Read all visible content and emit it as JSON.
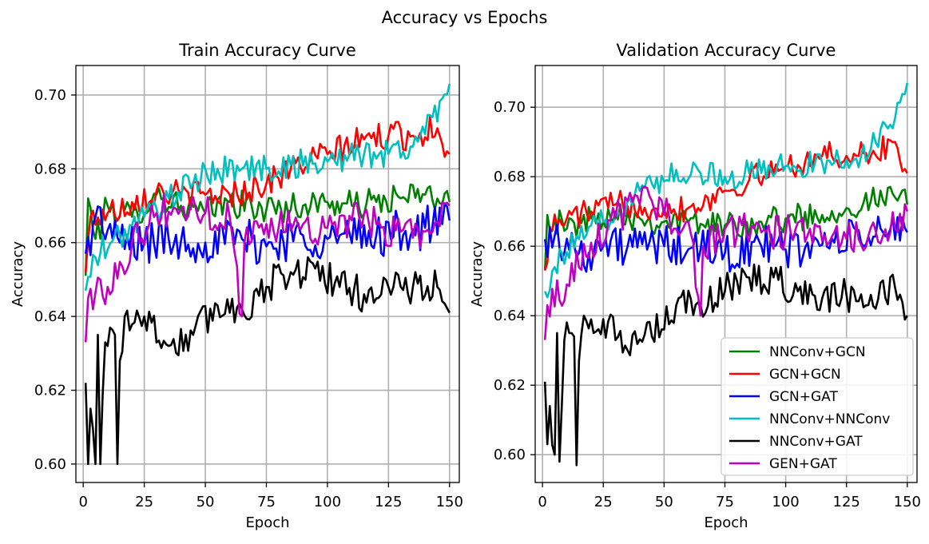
{
  "figure": {
    "title": "Accuracy vs Epochs"
  },
  "legend": {
    "location": "lower-right of second panel",
    "entries": [
      {
        "label": "NNConv+GCN",
        "color": "#008000"
      },
      {
        "label": "GCN+GCN",
        "color": "#ff0000"
      },
      {
        "label": "GCN+GAT",
        "color": "#0000ff"
      },
      {
        "label": "NNConv+NNConv",
        "color": "#00bfbf"
      },
      {
        "label": "NNConv+GAT",
        "color": "#000000"
      },
      {
        "label": "GEN+GAT",
        "color": "#bf00bf"
      }
    ]
  },
  "chart_data": [
    {
      "type": "line",
      "title": "Train Accuracy Curve",
      "xlabel": "Epoch",
      "ylabel": "Accuracy",
      "xlim": [
        -3,
        154
      ],
      "ylim": [
        0.595,
        0.708
      ],
      "xticks": [
        0,
        25,
        50,
        75,
        100,
        125,
        150
      ],
      "yticks": [
        0.6,
        0.62,
        0.64,
        0.66,
        0.68,
        0.7
      ],
      "ytick_labels": [
        "0.60",
        "0.62",
        "0.64",
        "0.66",
        "0.68",
        "0.70"
      ],
      "grid": true,
      "x": [
        1,
        150
      ],
      "series": [
        {
          "name": "NNConv+GCN",
          "color": "#008000",
          "keypoints": [
            [
              1,
              0.651
            ],
            [
              2,
              0.672
            ],
            [
              5,
              0.661
            ],
            [
              10,
              0.67
            ],
            [
              20,
              0.667
            ],
            [
              30,
              0.673
            ],
            [
              40,
              0.67
            ],
            [
              50,
              0.668
            ],
            [
              60,
              0.671
            ],
            [
              75,
              0.669
            ],
            [
              90,
              0.67
            ],
            [
              100,
              0.671
            ],
            [
              110,
              0.67
            ],
            [
              120,
              0.671
            ],
            [
              130,
              0.672
            ],
            [
              140,
              0.673
            ],
            [
              150,
              0.671
            ]
          ],
          "noise": 0.004
        },
        {
          "name": "GCN+GCN",
          "color": "#ff0000",
          "keypoints": [
            [
              1,
              0.652
            ],
            [
              3,
              0.667
            ],
            [
              10,
              0.668
            ],
            [
              20,
              0.671
            ],
            [
              30,
              0.674
            ],
            [
              40,
              0.673
            ],
            [
              50,
              0.673
            ],
            [
              60,
              0.673
            ],
            [
              75,
              0.676
            ],
            [
              85,
              0.68
            ],
            [
              100,
              0.684
            ],
            [
              115,
              0.688
            ],
            [
              125,
              0.689
            ],
            [
              135,
              0.689
            ],
            [
              145,
              0.691
            ],
            [
              150,
              0.684
            ]
          ],
          "noise": 0.004
        },
        {
          "name": "GCN+GAT",
          "color": "#0000ff",
          "keypoints": [
            [
              1,
              0.657
            ],
            [
              5,
              0.667
            ],
            [
              15,
              0.66
            ],
            [
              25,
              0.66
            ],
            [
              35,
              0.661
            ],
            [
              50,
              0.66
            ],
            [
              65,
              0.661
            ],
            [
              75,
              0.659
            ],
            [
              90,
              0.662
            ],
            [
              100,
              0.661
            ],
            [
              120,
              0.662
            ],
            [
              140,
              0.664
            ],
            [
              150,
              0.666
            ]
          ],
          "noise": 0.006
        },
        {
          "name": "NNConv+NNConv",
          "color": "#00bfbf",
          "keypoints": [
            [
              1,
              0.647
            ],
            [
              5,
              0.656
            ],
            [
              15,
              0.662
            ],
            [
              25,
              0.667
            ],
            [
              35,
              0.672
            ],
            [
              45,
              0.676
            ],
            [
              55,
              0.68
            ],
            [
              65,
              0.68
            ],
            [
              75,
              0.68
            ],
            [
              85,
              0.681
            ],
            [
              100,
              0.682
            ],
            [
              115,
              0.684
            ],
            [
              125,
              0.684
            ],
            [
              135,
              0.686
            ],
            [
              143,
              0.694
            ],
            [
              150,
              0.703
            ]
          ],
          "noise": 0.004
        },
        {
          "name": "NNConv+GAT",
          "color": "#000000",
          "keypoints": [
            [
              1,
              0.622
            ],
            [
              2,
              0.6
            ],
            [
              3,
              0.615
            ],
            [
              5,
              0.6
            ],
            [
              6,
              0.635
            ],
            [
              7,
              0.6
            ],
            [
              9,
              0.633
            ],
            [
              11,
              0.637
            ],
            [
              13,
              0.635
            ],
            [
              14,
              0.6
            ],
            [
              15,
              0.628
            ],
            [
              17,
              0.64
            ],
            [
              25,
              0.64
            ],
            [
              35,
              0.632
            ],
            [
              45,
              0.635
            ],
            [
              55,
              0.643
            ],
            [
              65,
              0.642
            ],
            [
              75,
              0.648
            ],
            [
              85,
              0.652
            ],
            [
              95,
              0.653
            ],
            [
              105,
              0.648
            ],
            [
              115,
              0.646
            ],
            [
              125,
              0.648
            ],
            [
              135,
              0.648
            ],
            [
              145,
              0.648
            ],
            [
              150,
              0.641
            ]
          ],
          "noise": 0.005
        },
        {
          "name": "GEN+GAT",
          "color": "#bf00bf",
          "keypoints": [
            [
              1,
              0.633
            ],
            [
              2,
              0.645
            ],
            [
              10,
              0.648
            ],
            [
              20,
              0.66
            ],
            [
              30,
              0.668
            ],
            [
              40,
              0.669
            ],
            [
              50,
              0.668
            ],
            [
              60,
              0.667
            ],
            [
              65,
              0.64
            ],
            [
              66,
              0.66
            ],
            [
              75,
              0.665
            ],
            [
              90,
              0.665
            ],
            [
              100,
              0.664
            ],
            [
              110,
              0.666
            ],
            [
              120,
              0.665
            ],
            [
              130,
              0.663
            ],
            [
              140,
              0.663
            ],
            [
              150,
              0.67
            ]
          ],
          "noise": 0.005
        }
      ]
    },
    {
      "type": "line",
      "title": "Validation Accuracy Curve",
      "xlabel": "Epoch",
      "ylabel": "Accuracy",
      "xlim": [
        -3,
        154
      ],
      "ylim": [
        0.592,
        0.712
      ],
      "xticks": [
        0,
        25,
        50,
        75,
        100,
        125,
        150
      ],
      "yticks": [
        0.6,
        0.62,
        0.64,
        0.66,
        0.68,
        0.7
      ],
      "ytick_labels": [
        "0.60",
        "0.62",
        "0.64",
        "0.66",
        "0.68",
        "0.70"
      ],
      "grid": true,
      "x": [
        1,
        150
      ],
      "series": [
        {
          "name": "NNConv+GCN",
          "color": "#008000",
          "keypoints": [
            [
              1,
              0.653
            ],
            [
              2,
              0.669
            ],
            [
              10,
              0.665
            ],
            [
              20,
              0.668
            ],
            [
              30,
              0.67
            ],
            [
              40,
              0.668
            ],
            [
              50,
              0.667
            ],
            [
              60,
              0.667
            ],
            [
              75,
              0.666
            ],
            [
              90,
              0.667
            ],
            [
              100,
              0.668
            ],
            [
              115,
              0.669
            ],
            [
              125,
              0.671
            ],
            [
              135,
              0.673
            ],
            [
              145,
              0.674
            ],
            [
              150,
              0.672
            ]
          ],
          "noise": 0.004
        },
        {
          "name": "GCN+GCN",
          "color": "#ff0000",
          "keypoints": [
            [
              1,
              0.653
            ],
            [
              3,
              0.665
            ],
            [
              10,
              0.668
            ],
            [
              20,
              0.67
            ],
            [
              30,
              0.672
            ],
            [
              40,
              0.672
            ],
            [
              50,
              0.671
            ],
            [
              60,
              0.671
            ],
            [
              75,
              0.676
            ],
            [
              85,
              0.679
            ],
            [
              100,
              0.683
            ],
            [
              115,
              0.686
            ],
            [
              125,
              0.686
            ],
            [
              135,
              0.686
            ],
            [
              145,
              0.69
            ],
            [
              150,
              0.681
            ]
          ],
          "noise": 0.004
        },
        {
          "name": "GCN+GAT",
          "color": "#0000ff",
          "keypoints": [
            [
              1,
              0.662
            ],
            [
              5,
              0.663
            ],
            [
              15,
              0.658
            ],
            [
              25,
              0.66
            ],
            [
              35,
              0.66
            ],
            [
              50,
              0.66
            ],
            [
              65,
              0.659
            ],
            [
              75,
              0.658
            ],
            [
              90,
              0.66
            ],
            [
              100,
              0.659
            ],
            [
              120,
              0.661
            ],
            [
              140,
              0.664
            ],
            [
              150,
              0.664
            ]
          ],
          "noise": 0.006
        },
        {
          "name": "NNConv+NNConv",
          "color": "#00bfbf",
          "keypoints": [
            [
              1,
              0.647
            ],
            [
              5,
              0.654
            ],
            [
              15,
              0.662
            ],
            [
              25,
              0.667
            ],
            [
              35,
              0.673
            ],
            [
              45,
              0.678
            ],
            [
              55,
              0.682
            ],
            [
              65,
              0.681
            ],
            [
              75,
              0.68
            ],
            [
              85,
              0.681
            ],
            [
              100,
              0.683
            ],
            [
              115,
              0.684
            ],
            [
              125,
              0.685
            ],
            [
              135,
              0.688
            ],
            [
              143,
              0.695
            ],
            [
              150,
              0.707
            ]
          ],
          "noise": 0.004
        },
        {
          "name": "NNConv+GAT",
          "color": "#000000",
          "keypoints": [
            [
              1,
              0.621
            ],
            [
              2,
              0.603
            ],
            [
              3,
              0.614
            ],
            [
              5,
              0.6
            ],
            [
              6,
              0.635
            ],
            [
              7,
              0.598
            ],
            [
              9,
              0.633
            ],
            [
              11,
              0.635
            ],
            [
              13,
              0.634
            ],
            [
              14,
              0.597
            ],
            [
              15,
              0.627
            ],
            [
              17,
              0.64
            ],
            [
              25,
              0.639
            ],
            [
              35,
              0.63
            ],
            [
              45,
              0.634
            ],
            [
              55,
              0.643
            ],
            [
              65,
              0.643
            ],
            [
              75,
              0.647
            ],
            [
              85,
              0.651
            ],
            [
              95,
              0.651
            ],
            [
              105,
              0.647
            ],
            [
              115,
              0.645
            ],
            [
              125,
              0.646
            ],
            [
              135,
              0.646
            ],
            [
              145,
              0.648
            ],
            [
              150,
              0.64
            ]
          ],
          "noise": 0.005
        },
        {
          "name": "GEN+GAT",
          "color": "#bf00bf",
          "keypoints": [
            [
              1,
              0.633
            ],
            [
              2,
              0.643
            ],
            [
              10,
              0.649
            ],
            [
              20,
              0.661
            ],
            [
              30,
              0.668
            ],
            [
              40,
              0.672
            ],
            [
              45,
              0.673
            ],
            [
              50,
              0.669
            ],
            [
              60,
              0.667
            ],
            [
              65,
              0.64
            ],
            [
              66,
              0.66
            ],
            [
              75,
              0.665
            ],
            [
              90,
              0.664
            ],
            [
              100,
              0.664
            ],
            [
              110,
              0.665
            ],
            [
              120,
              0.664
            ],
            [
              130,
              0.662
            ],
            [
              140,
              0.663
            ],
            [
              150,
              0.67
            ]
          ],
          "noise": 0.005
        }
      ]
    }
  ]
}
